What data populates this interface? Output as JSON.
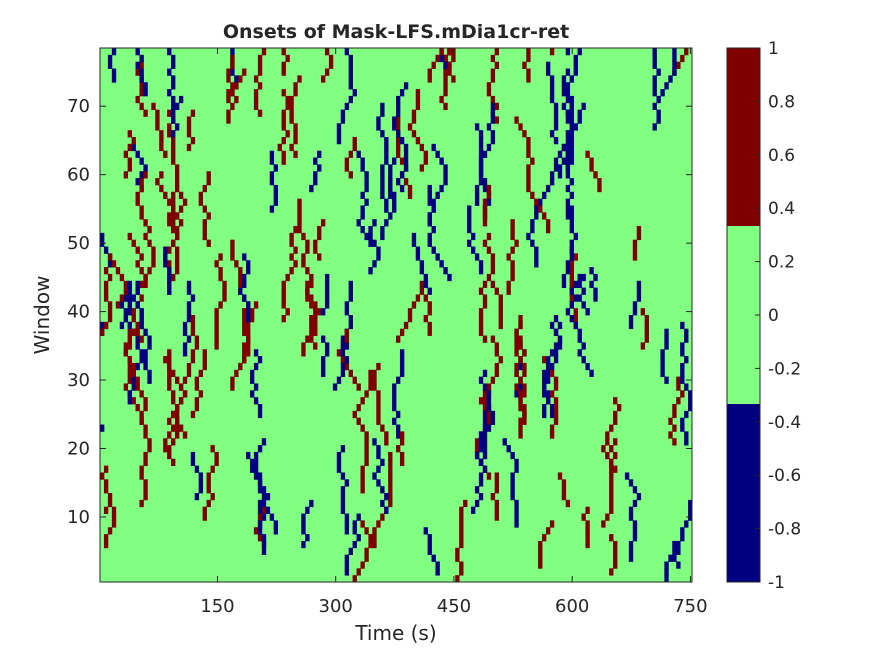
{
  "chart_data": {
    "type": "heatmap",
    "title": "Onsets of Mask-LFS.mDia1cr-ret",
    "xlabel": "Time (s)",
    "ylabel": "Window",
    "xlim": [
      1,
      752
    ],
    "ylim": [
      0.5,
      78.5
    ],
    "x_ticks": [
      150,
      300,
      450,
      600,
      750
    ],
    "y_ticks": [
      10,
      20,
      30,
      40,
      50,
      60,
      70
    ],
    "colorbar": {
      "ticks": [
        1,
        0.8,
        0.6,
        0.4,
        0.2,
        0,
        -0.2,
        -0.4,
        -0.6,
        -0.8,
        -1
      ],
      "tick_labels": [
        "1",
        "0.8",
        "0.6",
        "0.4",
        "0.2",
        "0",
        "-0.2",
        "-0.4",
        "-0.6",
        "-0.8",
        "-1"
      ],
      "range": [
        -1,
        1
      ],
      "colors": [
        {
          "value": -1,
          "color": "#000080"
        },
        {
          "value": 0,
          "color": "#80ff80"
        },
        {
          "value": 1,
          "color": "#800000"
        }
      ]
    },
    "grid": false,
    "values_legend": {
      "-1": "blue onset",
      "0": "no onset",
      "1": "red onset"
    },
    "time_step_s": 5,
    "n_time_bins": 150,
    "n_windows": 78,
    "onsets_note": "Sparse pattern of +1 (dark red) and -1 (dark blue) single-cell onsets forming drifting diagonal streaks on a 0 (green) background; positions estimated."
  }
}
